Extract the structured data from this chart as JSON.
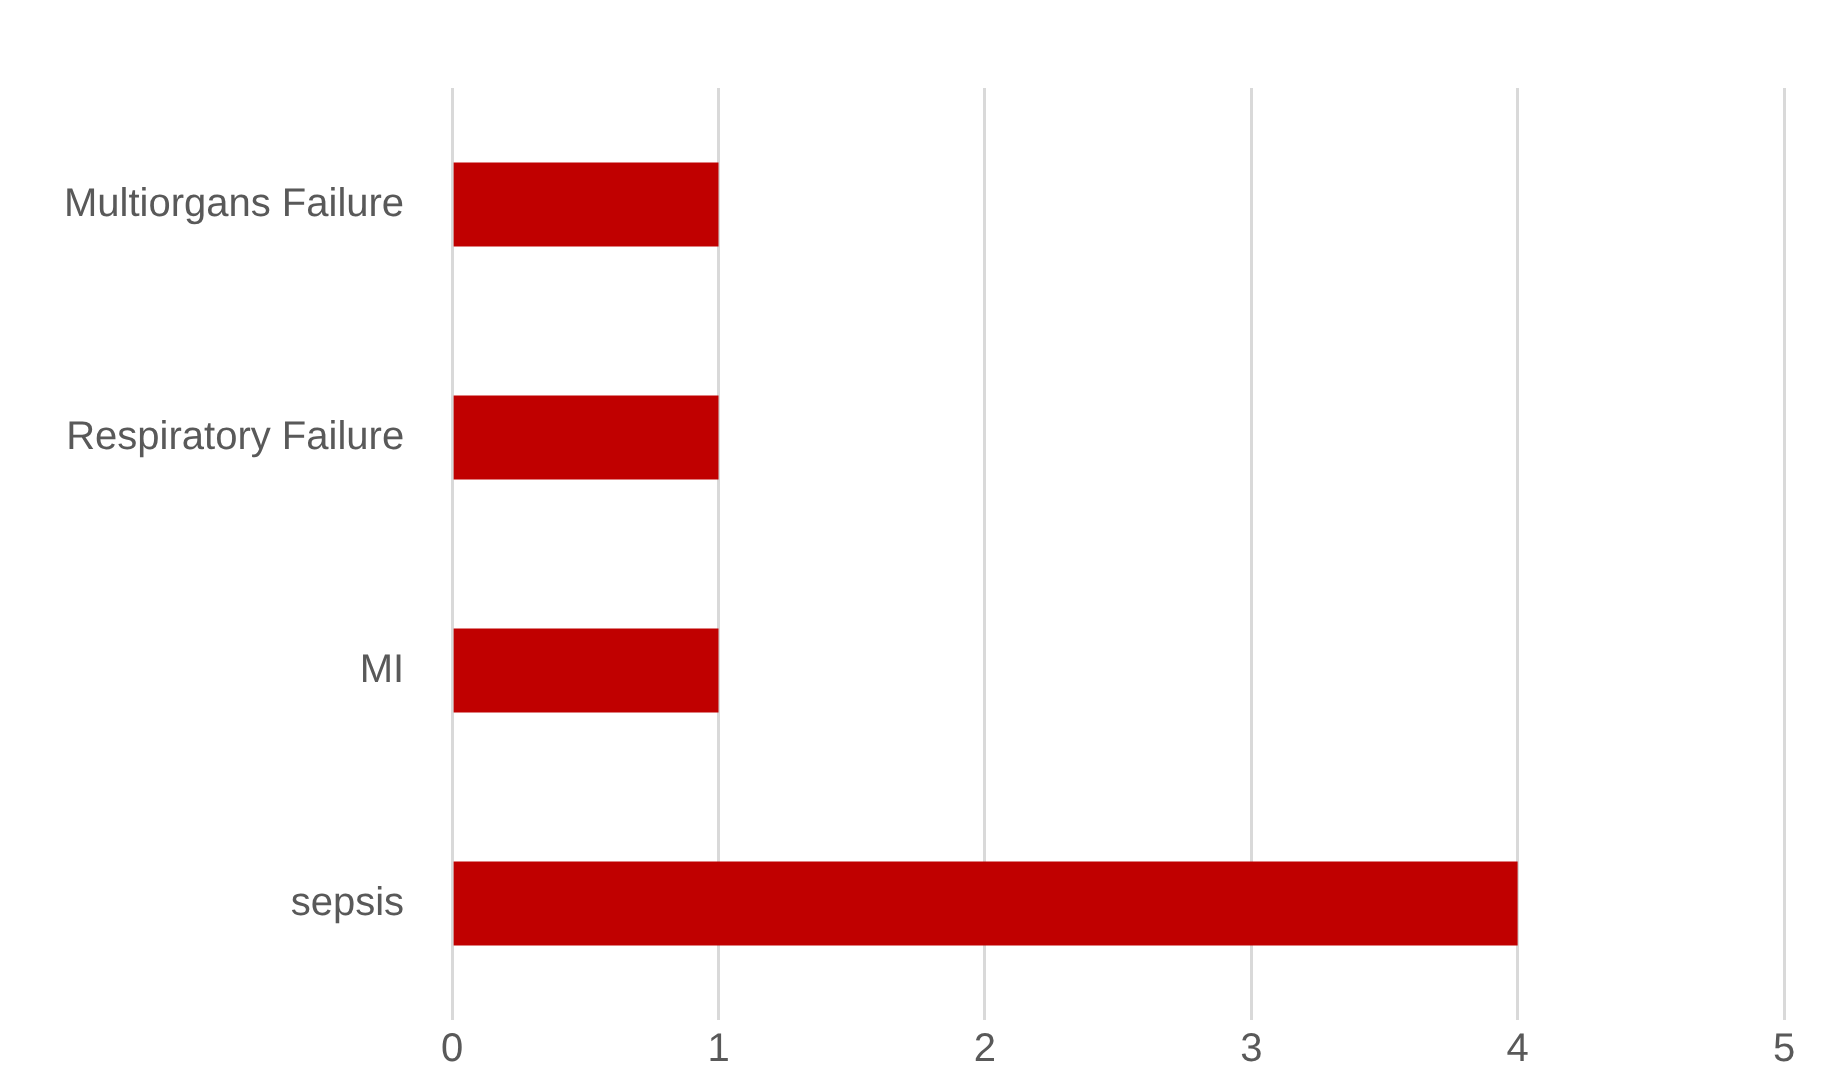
{
  "chart_data": {
    "type": "bar",
    "orientation": "horizontal",
    "categories": [
      "Multiorgans Failure",
      "Respiratory Failure",
      "MI",
      "sepsis"
    ],
    "values": [
      1,
      1,
      1,
      4
    ],
    "color": "#c00000",
    "xlim": [
      0,
      5
    ],
    "xticks": [
      0,
      1,
      2,
      3,
      4,
      5
    ],
    "grid": "x",
    "legend": false
  }
}
